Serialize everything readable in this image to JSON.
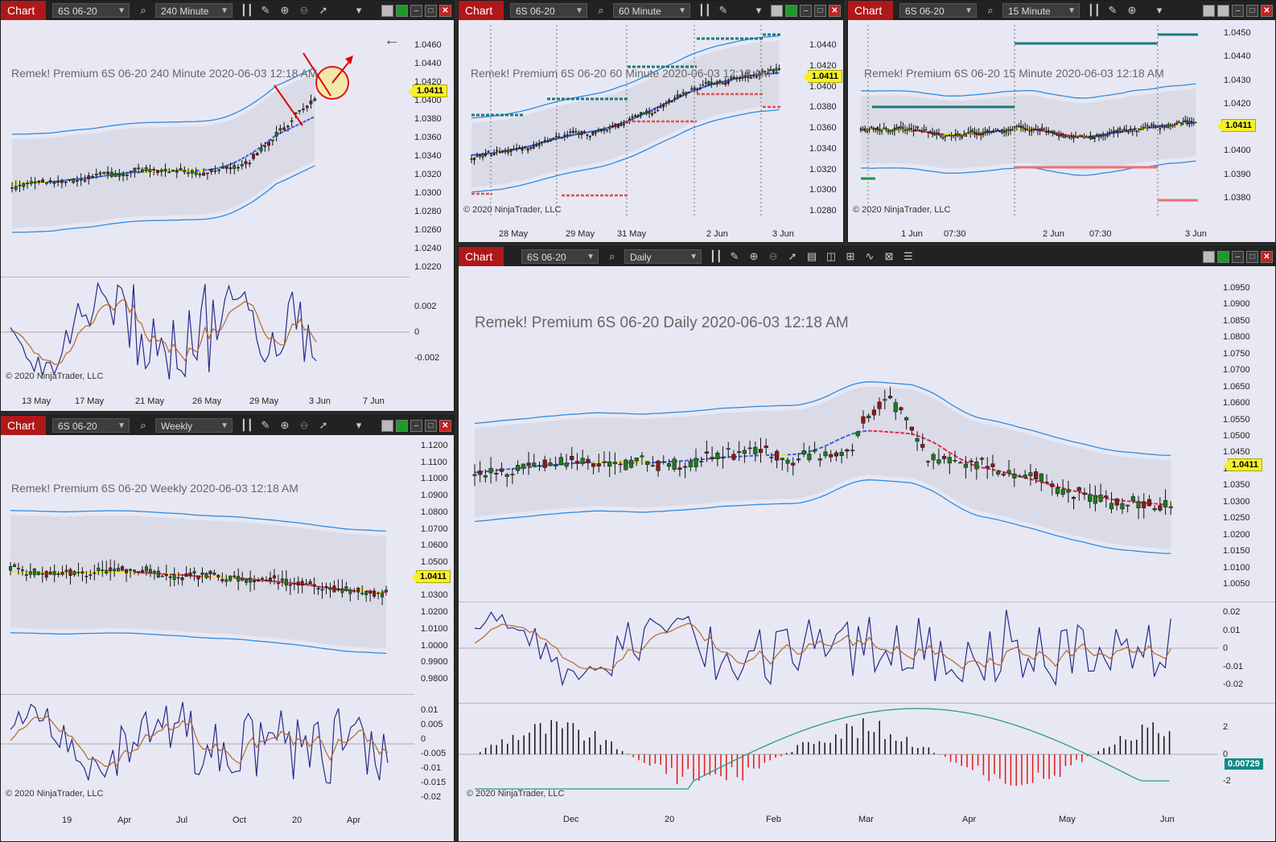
{
  "app_label": "Chart",
  "copyright": "© 2020 NinjaTrader, LLC",
  "last_price": "1.0411",
  "colors": {
    "up": "#1e7a1e",
    "down": "#8b1a1a",
    "band": "#2f8be0",
    "mid_down": "#e0284a",
    "mid_up": "#3a5ed8",
    "neutral": "#f2e600",
    "highlight": "#e00000"
  },
  "windows": [
    {
      "id": "w240",
      "instrument": "6S 06-20",
      "period": "240 Minute",
      "watermark": "Remek!  Premium  6S 06-20  240 Minute  2020-06-03 12:18 AM",
      "price_axis": [
        "1.0460",
        "1.0440",
        "1.0420",
        "1.0400",
        "1.0380",
        "1.0360",
        "1.0340",
        "1.0320",
        "1.0300",
        "1.0280",
        "1.0260",
        "1.0240",
        "1.0220"
      ],
      "osc_axis": [
        "0.002",
        "0",
        "-0.002"
      ],
      "time_axis": [
        "13 May",
        "17 May",
        "21 May",
        "26 May",
        "29 May",
        "3 Jun",
        "7 Jun"
      ]
    },
    {
      "id": "w60",
      "instrument": "6S 06-20",
      "period": "60 Minute",
      "watermark": "Remek!  Premium  6S 06-20  60 Minute  2020-06-03 12:18 AM",
      "price_axis": [
        "1.0440",
        "1.0420",
        "1.0400",
        "1.0380",
        "1.0360",
        "1.0340",
        "1.0320",
        "1.0300",
        "1.0280"
      ],
      "time_axis": [
        "28 May",
        "29 May",
        "31 May",
        "2 Jun",
        "3 Jun"
      ]
    },
    {
      "id": "w15",
      "instrument": "6S 06-20",
      "period": "15 Minute",
      "watermark": "Remek!  Premium  6S 06-20  15 Minute  2020-06-03 12:18 AM",
      "price_axis": [
        "1.0450",
        "1.0440",
        "1.0430",
        "1.0420",
        "1.0410",
        "1.0400",
        "1.0390",
        "1.0380"
      ],
      "time_axis": [
        "1 Jun",
        "07:30",
        "2 Jun",
        "07:30",
        "3 Jun"
      ]
    },
    {
      "id": "wD",
      "instrument": "6S 06-20",
      "period": "Daily",
      "watermark": "Remek!  Premium  6S 06-20  Daily  2020-06-03 12:18 AM",
      "price_axis": [
        "1.0950",
        "1.0900",
        "1.0850",
        "1.0800",
        "1.0750",
        "1.0700",
        "1.0650",
        "1.0600",
        "1.0550",
        "1.0500",
        "1.0450",
        "1.0400",
        "1.0350",
        "1.0300",
        "1.0250",
        "1.0200",
        "1.0150",
        "1.0100",
        "1.0050"
      ],
      "osc_axis": [
        "0.02",
        "0.01",
        "0",
        "-0.01",
        "-0.02"
      ],
      "hist_axis": [
        "2",
        "0",
        "-2"
      ],
      "hist_badge": "0.00729",
      "time_axis": [
        "Dec",
        "20",
        "Feb",
        "Mar",
        "Apr",
        "May",
        "Jun"
      ]
    },
    {
      "id": "wW",
      "instrument": "6S 06-20",
      "period": "Weekly",
      "watermark": "Remek!  Premium  6S 06-20  Weekly  2020-06-03 12:18 AM",
      "price_axis": [
        "1.1200",
        "1.1100",
        "1.1000",
        "1.0900",
        "1.0800",
        "1.0700",
        "1.0600",
        "1.0500",
        "1.0400",
        "1.0300",
        "1.0200",
        "1.0100",
        "1.0000",
        "0.9900",
        "0.9800"
      ],
      "osc_axis": [
        "0.01",
        "0.005",
        "0",
        "-0.005",
        "-0.01",
        "-0.015",
        "-0.02"
      ],
      "time_axis": [
        "19",
        "Apr",
        "Jul",
        "Oct",
        "20",
        "Apr"
      ]
    }
  ]
}
